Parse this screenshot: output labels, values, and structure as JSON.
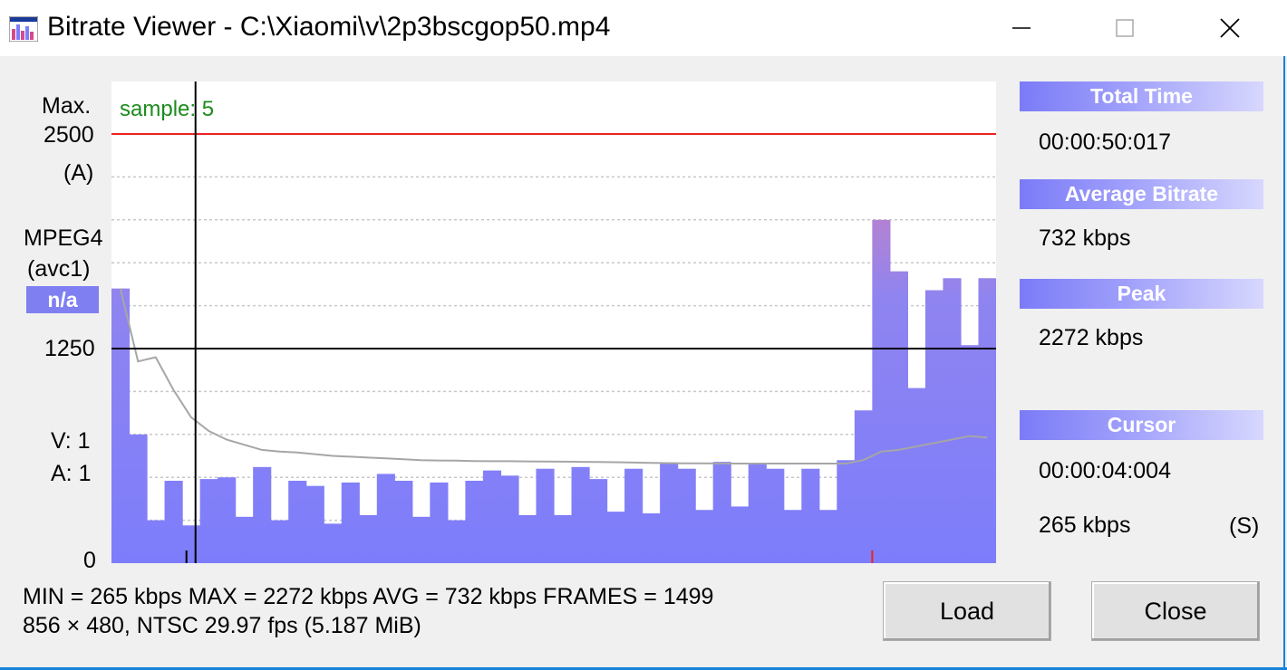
{
  "window": {
    "title": "Bitrate Viewer - C:\\Xiaomi\\v\\2p3bscgop50.mp4"
  },
  "left_panel": {
    "max_label": "Max.",
    "max_value": "2500",
    "mode": "(A)",
    "codec": "MPEG4",
    "codec_sub": "(avc1)",
    "codec_badge": "n/a",
    "mid_value": "1250",
    "v_label": "V:  1",
    "a_label": "A:  1",
    "zero_value": "0"
  },
  "plot": {
    "sample_label": "sample: 5"
  },
  "right_panel": {
    "total_time_header": "Total Time",
    "total_time_value": "00:00:50:017",
    "avg_bitrate_header": "Average Bitrate",
    "avg_bitrate_value": "732 kbps",
    "peak_header": "Peak",
    "peak_value": "2272 kbps",
    "cursor_header": "Cursor",
    "cursor_time": "00:00:04:004",
    "cursor_bitrate": "265 kbps",
    "cursor_mode": "(S)"
  },
  "stats": {
    "line1": "MIN = 265 kbps  MAX = 2272 kbps  AVG = 732 kbps  FRAMES = 1499",
    "line2": "856 × 480, NTSC 29.97 fps          (5.187 MiB)"
  },
  "buttons": {
    "load": "Load",
    "close": "Close"
  },
  "colors": {
    "bar_bottom": "#7d7dfb",
    "bar_top": "#e27fa9",
    "max_line": "#ee2222",
    "avg_curve": "#a0a0a0",
    "sample_text": "#1c8c1c",
    "header_blue": "#7b7bf7"
  },
  "chart_data": {
    "type": "bar",
    "ylim": [
      0,
      2500
    ],
    "ymax_line": 2500,
    "ymid_line": 1250,
    "x": [
      0,
      1,
      2,
      3,
      4,
      5,
      6,
      7,
      8,
      9,
      10,
      11,
      12,
      13,
      14,
      15,
      16,
      17,
      18,
      19,
      20,
      21,
      22,
      23,
      24,
      25,
      26,
      27,
      28,
      29,
      30,
      31,
      32,
      33,
      34,
      35,
      36,
      37,
      38,
      39,
      40,
      41,
      42,
      43,
      44,
      45,
      46,
      47,
      48,
      49
    ],
    "values": [
      1600,
      750,
      250,
      480,
      220,
      490,
      500,
      270,
      560,
      250,
      480,
      450,
      230,
      470,
      280,
      520,
      480,
      270,
      470,
      250,
      480,
      540,
      510,
      280,
      550,
      280,
      560,
      490,
      300,
      550,
      290,
      580,
      550,
      310,
      590,
      330,
      580,
      550,
      310,
      550,
      310,
      600,
      890,
      2000,
      1700,
      1020,
      1590,
      1660,
      1270,
      1660
    ],
    "running_avg": [
      1600,
      1175,
      1200,
      1010,
      850,
      770,
      720,
      690,
      660,
      650,
      645,
      635,
      625,
      620,
      615,
      610,
      605,
      600,
      598,
      597,
      595,
      594,
      594,
      593,
      592,
      591,
      590,
      589,
      588,
      586,
      584,
      583,
      582,
      581,
      580,
      580,
      580,
      580,
      580,
      580,
      580,
      580,
      600,
      650,
      660,
      680,
      700,
      720,
      740,
      732
    ],
    "cursor_sample": 5,
    "cursor_bitrate": 265,
    "avg_bitrate": 732,
    "peak_bitrate": 2272
  }
}
